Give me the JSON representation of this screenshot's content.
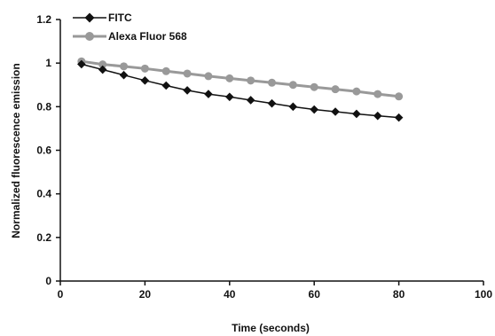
{
  "chart_data": {
    "type": "line",
    "title": "",
    "xlabel": "Time (seconds)",
    "ylabel": "Normalized fluorescence emission",
    "xlim": [
      0,
      100
    ],
    "ylim": [
      0,
      1.2
    ],
    "x_ticks": [
      0,
      20,
      40,
      60,
      80,
      100
    ],
    "y_ticks": [
      0,
      0.2,
      0.4,
      0.6,
      0.8,
      1,
      1.2
    ],
    "x_tick_labels": [
      "0",
      "20",
      "40",
      "60",
      "80",
      "100"
    ],
    "y_tick_labels": [
      "0",
      "0.2",
      "0.4",
      "0.6",
      "0.8",
      "1",
      "1.2"
    ],
    "grid": false,
    "legend_position": "top-left",
    "x": [
      5,
      10,
      15,
      20,
      25,
      30,
      35,
      40,
      45,
      50,
      55,
      60,
      65,
      70,
      75,
      80
    ],
    "series": [
      {
        "name": "FITC",
        "color": "#111111",
        "marker": "diamond",
        "values": [
          0.995,
          0.97,
          0.945,
          0.92,
          0.897,
          0.875,
          0.858,
          0.845,
          0.83,
          0.815,
          0.8,
          0.787,
          0.777,
          0.767,
          0.758,
          0.75
        ]
      },
      {
        "name": "Alexa Fluor 568",
        "color": "#999999",
        "marker": "circle",
        "values": [
          1.008,
          0.994,
          0.985,
          0.975,
          0.963,
          0.952,
          0.94,
          0.93,
          0.92,
          0.91,
          0.9,
          0.89,
          0.88,
          0.87,
          0.858,
          0.847
        ]
      }
    ]
  }
}
